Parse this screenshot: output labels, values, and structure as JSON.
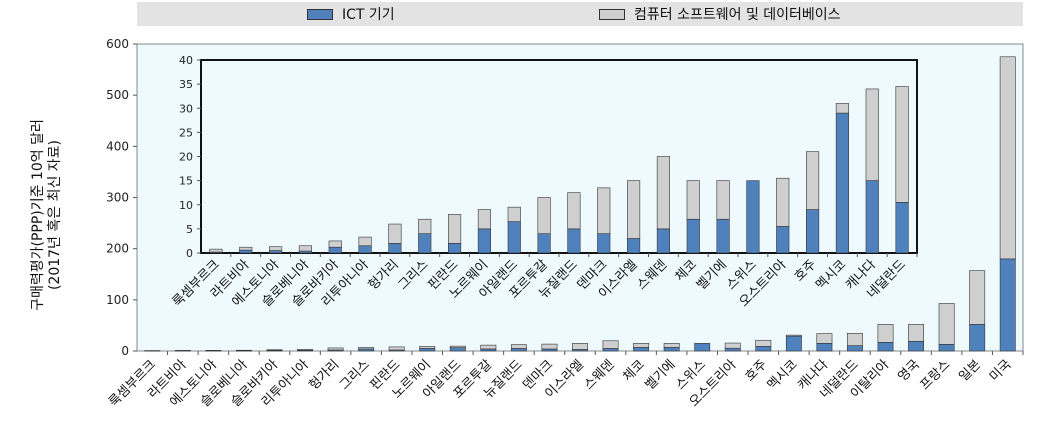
{
  "legend": {
    "ict_label": "ICT 기기",
    "software_label": "컴퓨터 소프트웨어 및 데이터베이스"
  },
  "colors": {
    "ict": "#4f81bd",
    "software": "#cfcfcf",
    "plot_bg": "#eefafe",
    "legend_bg": "#e3e3e3"
  },
  "chart_data": [
    {
      "type": "bar",
      "stacked": true,
      "ylabel_line1": "구매력평가(PPP)기준 10억 달러",
      "ylabel_line2": "(2017년 혹은 최신 자료)",
      "ylim": [
        0,
        600
      ],
      "yticks": [
        "0",
        "100",
        "200",
        "300",
        "400",
        "500",
        "600"
      ],
      "categories": [
        "룩셈부르크",
        "라트비아",
        "에스토니아",
        "슬로베니아",
        "슬로바키아",
        "리투아니아",
        "헝가리",
        "그리스",
        "핀란드",
        "노르웨이",
        "아일랜드",
        "포르투갈",
        "뉴질랜드",
        "덴마크",
        "이스라엘",
        "스웨덴",
        "체코",
        "벨기에",
        "스위스",
        "오스트리아",
        "호주",
        "멕시코",
        "캐나다",
        "네덜란드",
        "이탈리아",
        "영국",
        "프랑스",
        "일본",
        "미국"
      ],
      "series": [
        {
          "name": "ICT 기기",
          "values": [
            0.2,
            0.6,
            0.5,
            0.4,
            1.2,
            1.5,
            2,
            4,
            2,
            5,
            6.5,
            4,
            5,
            4,
            3,
            5,
            7,
            7,
            15,
            5.5,
            9,
            29,
            15,
            10.5,
            17,
            19,
            13,
            52,
            180
          ]
        },
        {
          "name": "컴퓨터 소프트웨어 및 데이터베이스",
          "values": [
            0.6,
            0.6,
            0.8,
            1.1,
            1.3,
            1.8,
            4,
            3,
            6,
            4,
            3,
            7.5,
            7.5,
            9.5,
            12,
            15,
            8,
            8,
            0,
            10,
            12,
            2,
            19,
            24,
            35,
            33,
            80,
            105,
            395
          ]
        }
      ]
    },
    {
      "type": "bar",
      "stacked": true,
      "ylim": [
        0,
        40
      ],
      "yticks": [
        "0",
        "5",
        "10",
        "15",
        "20",
        "25",
        "30",
        "35",
        "40"
      ],
      "categories": [
        "룩셈부르크",
        "라트비아",
        "에스토니아",
        "슬로베니아",
        "슬로바키아",
        "리투아니아",
        "헝가리",
        "그리스",
        "핀란드",
        "노르웨이",
        "아일랜드",
        "포르투갈",
        "뉴질랜드",
        "덴마크",
        "이스라엘",
        "스웨덴",
        "체코",
        "벨기에",
        "스위스",
        "오스트리아",
        "호주",
        "멕시코",
        "캐나다",
        "네덜란드"
      ],
      "series": [
        {
          "name": "ICT 기기",
          "values": [
            0.2,
            0.6,
            0.5,
            0.4,
            1.2,
            1.5,
            2,
            4,
            2,
            5,
            6.5,
            4,
            5,
            4,
            3,
            5,
            7,
            7,
            15,
            5.5,
            9,
            29,
            15,
            10.5
          ]
        },
        {
          "name": "컴퓨터 소프트웨어 및 데이터베이스",
          "values": [
            0.6,
            0.6,
            0.8,
            1.1,
            1.3,
            1.8,
            4,
            3,
            6,
            4,
            3,
            7.5,
            7.5,
            9.5,
            12,
            15,
            8,
            8,
            0,
            10,
            12,
            2,
            19,
            24
          ]
        }
      ]
    }
  ]
}
